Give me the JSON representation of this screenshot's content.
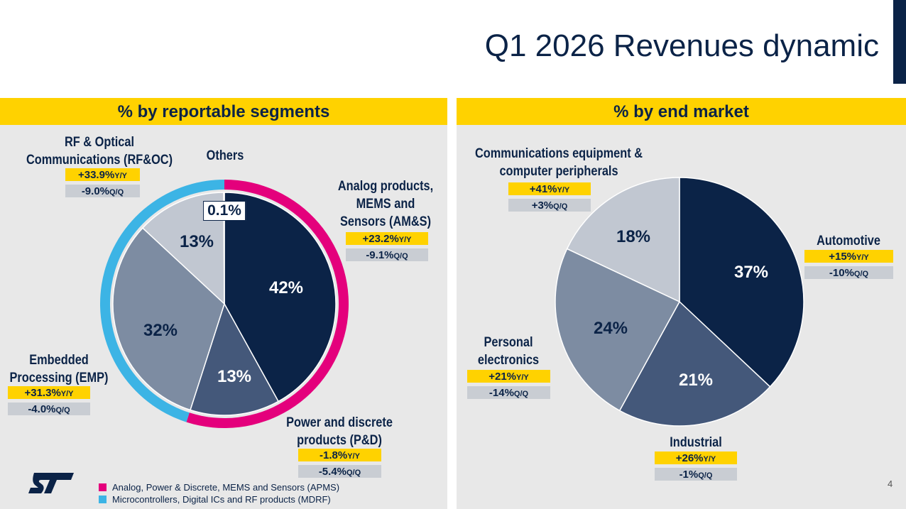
{
  "slide": {
    "title": "Q1 2026 Revenues dynamic",
    "page_number": "4"
  },
  "chart_data": [
    {
      "type": "pie",
      "title": "% by reportable segments",
      "categories": [
        "Analog products,\nMEMS and\nSensors (AM&S)",
        "Power and discrete\nproducts (P&D)",
        "Embedded\nProcessing (EMP)",
        "RF & Optical\nCommunications (RF&OC)",
        "Others"
      ],
      "values": [
        42,
        13,
        32,
        13,
        0.1
      ],
      "value_labels": [
        "42%",
        "13%",
        "32%",
        "13%",
        "0.1%"
      ],
      "colors": [
        "#0b2347",
        "#44587a",
        "#7d8ca2",
        "#c1c7d1",
        "#e4e7ec"
      ],
      "label_colors": [
        "#ffffff",
        "#ffffff",
        "#0b2347",
        "#0b2347",
        "#0b2347"
      ],
      "yoy": [
        "+23.2%",
        "-1.8%",
        "+31.3%",
        "+33.9%",
        null
      ],
      "qoq": [
        "-9.1%",
        "-5.4%",
        "-4.0%",
        "-9.0%",
        null
      ],
      "yoy_suffix": "Y/Y",
      "qoq_suffix": "Q/Q",
      "ring": [
        {
          "name": "Analog, Power & Discrete, MEMS and Sensors (APMS)",
          "color": "#e4007c",
          "members": [
            0,
            1
          ]
        },
        {
          "name": "Microcontrollers, Digital ICs and RF products (MDRF)",
          "color": "#3cb4e5",
          "members": [
            2,
            3,
            4
          ]
        }
      ]
    },
    {
      "type": "pie",
      "title": "% by end market",
      "categories": [
        "Automotive",
        "Industrial",
        "Personal\nelectronics",
        "Communications equipment &\ncomputer peripherals"
      ],
      "values": [
        37,
        21,
        24,
        18
      ],
      "value_labels": [
        "37%",
        "21%",
        "24%",
        "18%"
      ],
      "colors": [
        "#0b2347",
        "#44587a",
        "#7d8ca2",
        "#c1c7d1"
      ],
      "label_colors": [
        "#ffffff",
        "#ffffff",
        "#0b2347",
        "#0b2347"
      ],
      "yoy": [
        "+15%",
        "+26%",
        "+21%",
        "+41%"
      ],
      "qoq": [
        "-10%",
        "-1%",
        "-14%",
        "+3%"
      ],
      "yoy_suffix": "Y/Y",
      "qoq_suffix": "Q/Q"
    }
  ]
}
